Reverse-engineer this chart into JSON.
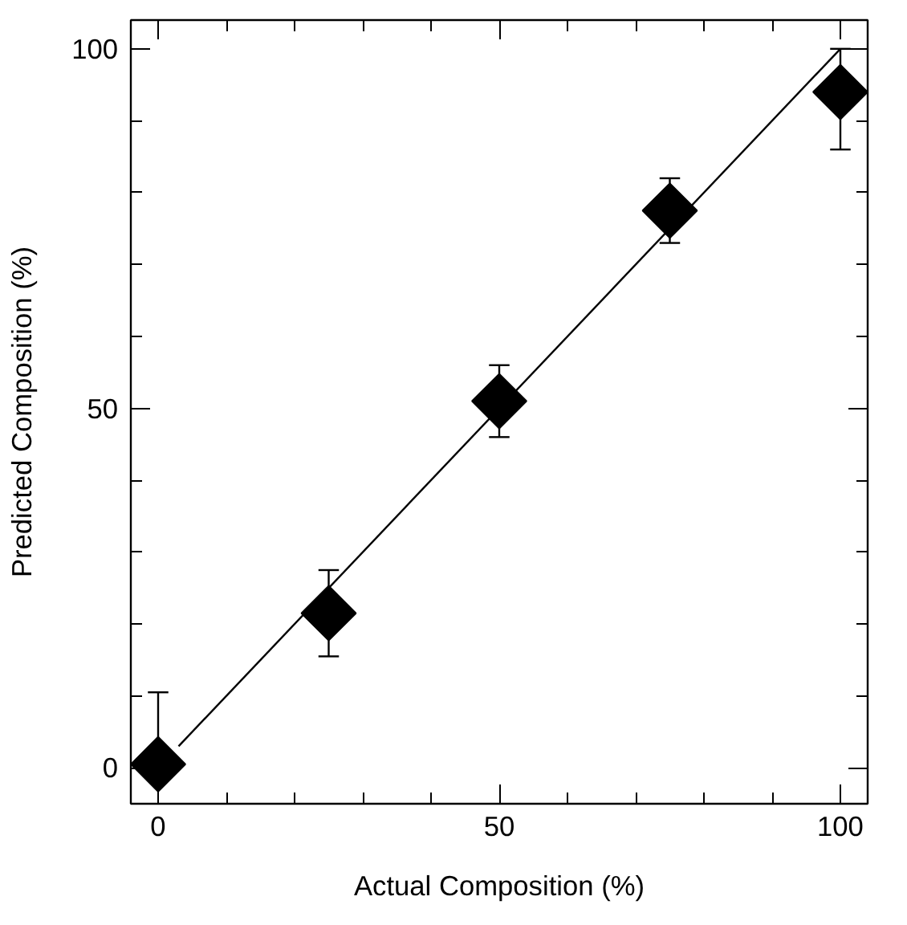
{
  "chart_data": {
    "type": "scatter",
    "xlabel": "Actual Composition (%)",
    "ylabel": "Predicted Composition (%)",
    "xlim": [
      -4,
      104
    ],
    "ylim": [
      -5,
      104
    ],
    "xticks": [
      0,
      {
        "value": 10,
        "label": null
      },
      {
        "value": 20,
        "label": null
      },
      {
        "value": 30,
        "label": null
      },
      {
        "value": 40,
        "label": null
      },
      50,
      {
        "value": 60,
        "label": null
      },
      {
        "value": 70,
        "label": null
      },
      {
        "value": 80,
        "label": null
      },
      {
        "value": 90,
        "label": null
      },
      100
    ],
    "yticks": [
      0,
      {
        "value": 10,
        "label": null
      },
      {
        "value": 20,
        "label": null
      },
      {
        "value": 30,
        "label": null
      },
      {
        "value": 40,
        "label": null
      },
      50,
      {
        "value": 60,
        "label": null
      },
      {
        "value": 70,
        "label": null
      },
      {
        "value": 80,
        "label": null
      },
      {
        "value": 90,
        "label": null
      },
      100
    ],
    "grid": false,
    "marker": "diamond",
    "series": [
      {
        "type": "line",
        "color": "#000000",
        "x": [
          3,
          100
        ],
        "values": [
          3,
          100
        ],
        "line_style": "solid",
        "marker": "none"
      },
      {
        "color": "#000000",
        "x": [
          0,
          25,
          50,
          75,
          100
        ],
        "values": [
          0.5,
          21.5,
          51,
          77.5,
          94
        ],
        "errors": [
          [
            0.5,
            10.5
          ],
          [
            15.5,
            27.5
          ],
          [
            46,
            56
          ],
          [
            73,
            82
          ],
          [
            86,
            100
          ]
        ]
      }
    ]
  }
}
